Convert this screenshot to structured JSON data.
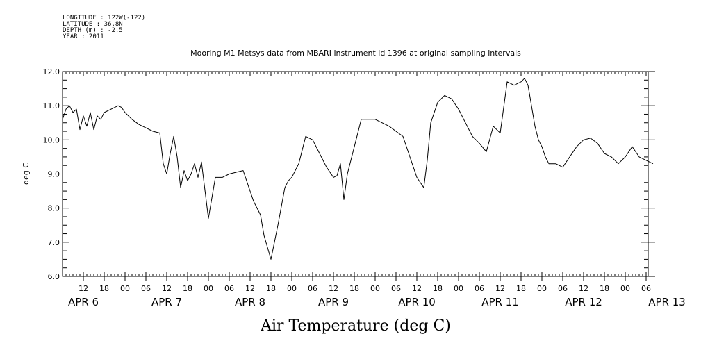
{
  "header": {
    "lines": [
      "LONGITUDE : 122W(-122)",
      "LATITUDE : 36.8N",
      "DEPTH (m) : -2.5",
      "YEAR : 2011"
    ]
  },
  "chart_data": {
    "type": "line",
    "title": "Mooring M1 Metsys data from MBARI instrument id 1396 at original sampling intervals",
    "xlabel": "Air Temperature (deg C)",
    "ylabel": "deg C",
    "ylim": [
      6.0,
      12.0
    ],
    "y_ticks": [
      "6.0",
      "7.0",
      "8.0",
      "9.0",
      "10.0",
      "11.0",
      "12.0"
    ],
    "x_range_hours": [
      "APR 6 06:00",
      "APR 13 08:00"
    ],
    "hour_ticks": [
      "12",
      "18",
      "00",
      "06",
      "12",
      "18",
      "00",
      "06",
      "12",
      "18",
      "00",
      "06",
      "12",
      "18",
      "00",
      "06",
      "12",
      "18",
      "00",
      "06",
      "12",
      "18",
      "00",
      "06",
      "12",
      "18",
      "00",
      "06"
    ],
    "date_labels": [
      "APR 6",
      "APR 7",
      "APR 8",
      "APR 9",
      "APR 10",
      "APR 11",
      "APR 12",
      "APR 13"
    ],
    "series": [
      {
        "x": [
          "Apr 6 06:00",
          "Apr 6 07:00",
          "Apr 6 08:00",
          "Apr 6 09:00",
          "Apr 6 10:00",
          "Apr 6 11:00",
          "Apr 6 12:00",
          "Apr 6 13:00",
          "Apr 6 14:00",
          "Apr 6 15:00",
          "Apr 6 16:00",
          "Apr 6 17:00",
          "Apr 6 18:00",
          "Apr 6 20:00",
          "Apr 6 22:00",
          "Apr 6 23:00",
          "Apr 7 00:00",
          "Apr 7 02:00",
          "Apr 7 04:00",
          "Apr 7 06:00",
          "Apr 7 08:00",
          "Apr 7 10:00",
          "Apr 7 11:00",
          "Apr 7 12:00",
          "Apr 7 13:00",
          "Apr 7 14:00",
          "Apr 7 15:00",
          "Apr 7 16:00",
          "Apr 7 17:00",
          "Apr 7 18:00",
          "Apr 7 19:00",
          "Apr 7 20:00",
          "Apr 7 21:00",
          "Apr 7 22:00",
          "Apr 8 00:00",
          "Apr 8 02:00",
          "Apr 8 04:00",
          "Apr 8 06:00",
          "Apr 8 08:00",
          "Apr 8 10:00",
          "Apr 8 12:00",
          "Apr 8 13:00",
          "Apr 8 14:00",
          "Apr 8 15:00",
          "Apr 8 16:00",
          "Apr 8 18:00",
          "Apr 8 20:00",
          "Apr 8 22:00",
          "Apr 8 23:00",
          "Apr 9 00:00",
          "Apr 9 02:00",
          "Apr 9 04:00",
          "Apr 9 06:00",
          "Apr 9 08:00",
          "Apr 9 10:00",
          "Apr 9 12:00",
          "Apr 9 13:00",
          "Apr 9 14:00",
          "Apr 9 15:00",
          "Apr 9 16:00",
          "Apr 9 18:00",
          "Apr 9 20:00",
          "Apr 9 22:00",
          "Apr 10 00:00",
          "Apr 10 04:00",
          "Apr 10 08:00",
          "Apr 10 10:00",
          "Apr 10 12:00",
          "Apr 10 14:00",
          "Apr 10 15:00",
          "Apr 10 16:00",
          "Apr 10 18:00",
          "Apr 10 20:00",
          "Apr 10 22:00",
          "Apr 11 00:00",
          "Apr 11 02:00",
          "Apr 11 04:00",
          "Apr 11 06:00",
          "Apr 11 08:00",
          "Apr 11 10:00",
          "Apr 11 12:00",
          "Apr 11 14:00",
          "Apr 11 16:00",
          "Apr 11 18:00",
          "Apr 11 19:00",
          "Apr 11 20:00",
          "Apr 11 21:00",
          "Apr 11 22:00",
          "Apr 11 23:00",
          "Apr 12 00:00",
          "Apr 12 01:00",
          "Apr 12 02:00",
          "Apr 12 04:00",
          "Apr 12 06:00",
          "Apr 12 08:00",
          "Apr 12 10:00",
          "Apr 12 12:00",
          "Apr 12 14:00",
          "Apr 12 16:00",
          "Apr 12 18:00",
          "Apr 12 20:00",
          "Apr 12 22:00",
          "Apr 13 00:00",
          "Apr 13 02:00",
          "Apr 13 04:00",
          "Apr 13 06:00",
          "Apr 13 08:00"
        ],
        "values": [
          10.6,
          10.9,
          11.0,
          10.8,
          10.9,
          10.3,
          10.7,
          10.4,
          10.8,
          10.3,
          10.7,
          10.6,
          10.8,
          10.9,
          11.0,
          10.95,
          10.8,
          10.6,
          10.45,
          10.35,
          10.25,
          10.2,
          9.3,
          9.0,
          9.6,
          10.1,
          9.5,
          8.6,
          9.1,
          8.8,
          9.0,
          9.3,
          8.9,
          9.35,
          7.7,
          8.9,
          8.9,
          9.0,
          9.05,
          9.1,
          8.5,
          8.2,
          8.0,
          7.8,
          7.2,
          6.5,
          7.5,
          8.6,
          8.8,
          8.9,
          9.3,
          10.1,
          10.0,
          9.6,
          9.2,
          8.9,
          8.95,
          9.3,
          8.25,
          9.0,
          9.8,
          10.6,
          10.6,
          10.6,
          10.4,
          10.1,
          9.5,
          8.9,
          8.6,
          9.4,
          10.5,
          11.1,
          11.3,
          11.2,
          10.9,
          10.5,
          10.1,
          9.9,
          9.65,
          10.4,
          10.2,
          11.7,
          11.6,
          11.7,
          11.8,
          11.6,
          11.0,
          10.4,
          10.0,
          9.8,
          9.5,
          9.3,
          9.3,
          9.2,
          9.5,
          9.8,
          10.0,
          10.05,
          9.9,
          9.6,
          9.5,
          9.3,
          9.5,
          9.8,
          9.5,
          9.4,
          9.3
        ]
      }
    ]
  }
}
